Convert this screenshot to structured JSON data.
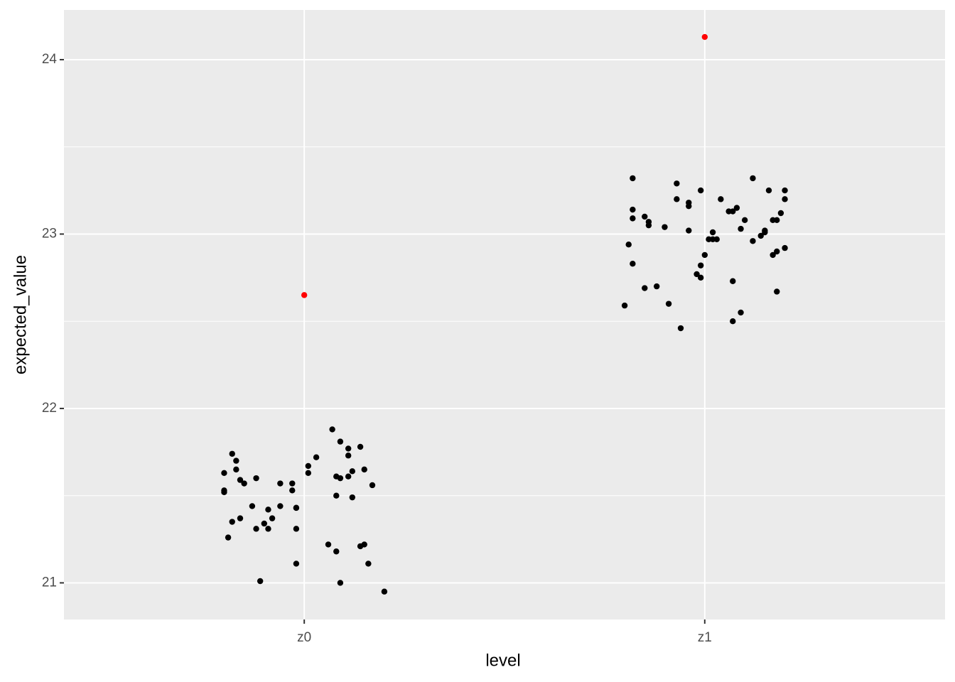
{
  "chart_data": {
    "type": "scatter",
    "x_label": "level",
    "y_label": "expected_value",
    "xlim": [
      0.4,
      2.6
    ],
    "xticks": [
      {
        "value": 1,
        "label": "z0"
      },
      {
        "value": 2,
        "label": "z1"
      }
    ],
    "ylim": [
      20.79,
      24.285
    ],
    "yticks": [
      21,
      22,
      23,
      24
    ],
    "yminor": [
      21.5,
      22.5,
      23.5
    ],
    "grid": true,
    "series": [
      {
        "color": "#000000",
        "x": [
          0.8,
          0.8,
          0.8,
          0.82,
          0.83,
          0.83,
          0.84,
          0.85,
          0.88,
          0.94,
          0.97,
          0.97,
          1.03,
          1.01,
          1.01,
          1.07,
          1.09,
          1.14,
          1.11,
          1.11,
          1.15,
          1.12,
          1.11,
          1.08,
          1.09,
          1.17,
          1.08,
          1.12,
          0.87,
          0.84,
          0.82,
          0.81,
          0.91,
          0.92,
          0.94,
          0.98,
          0.98,
          0.98,
          0.88,
          0.9,
          0.91,
          1.06,
          1.08,
          1.15,
          1.14,
          1.16,
          0.98,
          0.89,
          1.09,
          1.2,
          1.82,
          1.82,
          1.82,
          1.85,
          1.86,
          1.86,
          1.9,
          1.81,
          1.82,
          1.8,
          1.85,
          1.88,
          1.91,
          1.94,
          1.93,
          1.93,
          1.96,
          1.96,
          1.96,
          1.99,
          2.04,
          2.06,
          2.07,
          2.08,
          2.1,
          2.09,
          2.02,
          2.02,
          2.01,
          2.03,
          2.0,
          1.99,
          1.98,
          1.99,
          2.07,
          2.09,
          2.07,
          2.12,
          2.16,
          2.2,
          2.2,
          2.19,
          2.17,
          2.18,
          2.15,
          2.15,
          2.14,
          2.12,
          2.2,
          2.18,
          2.17,
          2.18
        ],
        "values": [
          21.63,
          21.53,
          21.52,
          21.74,
          21.7,
          21.65,
          21.59,
          21.57,
          21.6,
          21.57,
          21.57,
          21.53,
          21.72,
          21.67,
          21.63,
          21.88,
          21.81,
          21.78,
          21.77,
          21.73,
          21.65,
          21.64,
          21.61,
          21.61,
          21.6,
          21.56,
          21.5,
          21.49,
          21.44,
          21.37,
          21.35,
          21.26,
          21.42,
          21.37,
          21.44,
          21.43,
          21.43,
          21.31,
          21.31,
          21.34,
          21.31,
          21.22,
          21.18,
          21.22,
          21.21,
          21.11,
          21.11,
          21.01,
          21.0,
          20.95,
          23.32,
          23.14,
          23.09,
          23.1,
          23.07,
          23.05,
          23.04,
          22.94,
          22.83,
          22.59,
          22.69,
          22.7,
          22.6,
          22.46,
          23.29,
          23.2,
          23.18,
          23.16,
          23.02,
          23.25,
          23.2,
          23.13,
          23.13,
          23.15,
          23.08,
          23.03,
          23.01,
          22.97,
          22.97,
          22.97,
          22.88,
          22.82,
          22.77,
          22.75,
          22.73,
          22.55,
          22.5,
          23.32,
          23.25,
          23.25,
          23.2,
          23.12,
          23.08,
          23.08,
          23.02,
          23.01,
          22.99,
          22.96,
          22.92,
          22.9,
          22.88,
          22.67
        ]
      },
      {
        "color": "#ff0000",
        "x": [
          1,
          2
        ],
        "values": [
          22.65,
          24.13
        ]
      }
    ]
  }
}
